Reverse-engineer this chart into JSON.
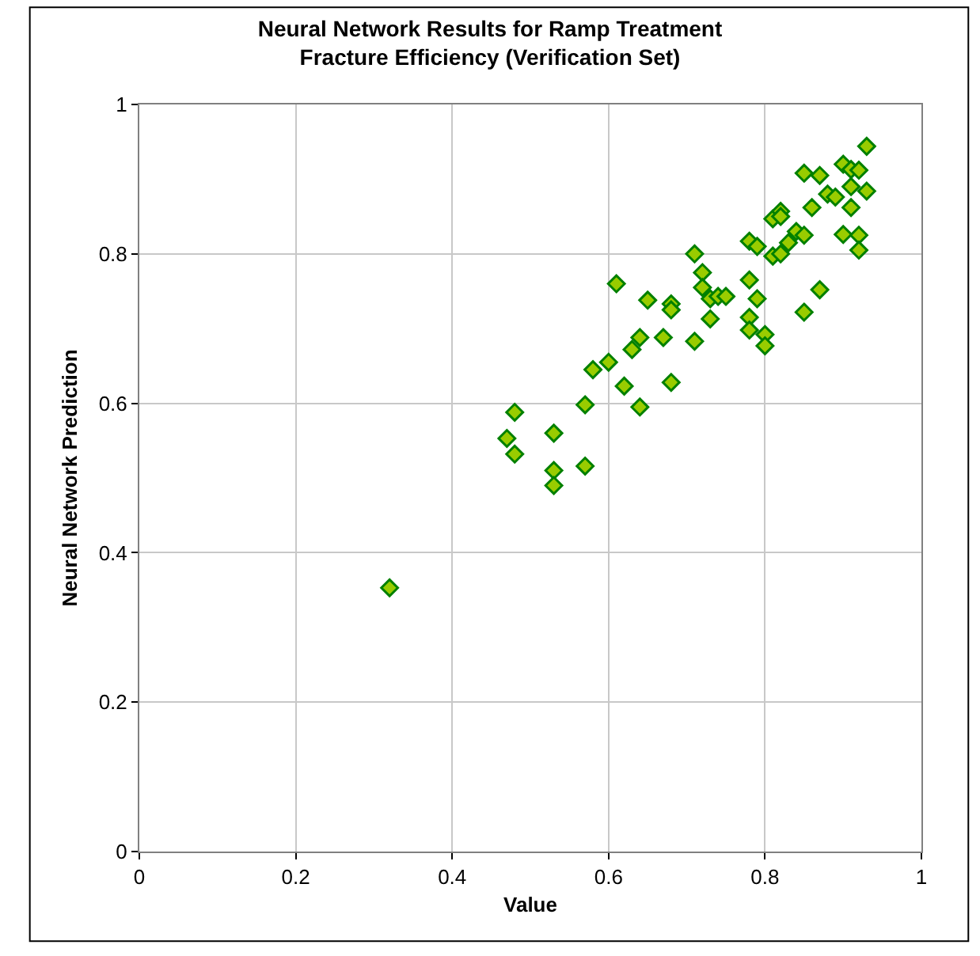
{
  "chart_data": {
    "type": "scatter",
    "title": "Neural Network Results for Ramp Treatment\nFracture Efficiency (Verification Set)",
    "xlabel": "Value",
    "ylabel": "Neural Network Prediction",
    "x": [
      0.32,
      0.47,
      0.48,
      0.48,
      0.53,
      0.53,
      0.53,
      0.57,
      0.57,
      0.58,
      0.6,
      0.61,
      0.62,
      0.63,
      0.64,
      0.64,
      0.65,
      0.67,
      0.68,
      0.68,
      0.68,
      0.71,
      0.71,
      0.72,
      0.72,
      0.73,
      0.73,
      0.74,
      0.75,
      0.78,
      0.78,
      0.78,
      0.78,
      0.79,
      0.79,
      0.8,
      0.8,
      0.81,
      0.81,
      0.82,
      0.82,
      0.82,
      0.83,
      0.84,
      0.85,
      0.85,
      0.85,
      0.86,
      0.87,
      0.87,
      0.88,
      0.89,
      0.9,
      0.9,
      0.91,
      0.91,
      0.91,
      0.92,
      0.92,
      0.92,
      0.93,
      0.93
    ],
    "values": [
      0.353,
      0.553,
      0.588,
      0.532,
      0.56,
      0.51,
      0.49,
      0.598,
      0.516,
      0.645,
      0.655,
      0.76,
      0.623,
      0.672,
      0.688,
      0.595,
      0.738,
      0.688,
      0.733,
      0.725,
      0.628,
      0.8,
      0.683,
      0.775,
      0.755,
      0.713,
      0.74,
      0.743,
      0.743,
      0.817,
      0.765,
      0.715,
      0.698,
      0.81,
      0.74,
      0.692,
      0.677,
      0.847,
      0.797,
      0.857,
      0.85,
      0.8,
      0.815,
      0.83,
      0.825,
      0.908,
      0.722,
      0.862,
      0.905,
      0.752,
      0.88,
      0.876,
      0.92,
      0.826,
      0.913,
      0.89,
      0.862,
      0.912,
      0.825,
      0.805,
      0.944,
      0.884
    ],
    "color": "#99cc00",
    "marker": "diamond",
    "xlim": [
      0,
      1
    ],
    "ylim": [
      0,
      1
    ],
    "xticks": [
      0,
      0.2,
      0.4,
      0.6,
      0.8,
      1
    ],
    "yticks": [
      0,
      0.2,
      0.4,
      0.6,
      0.8,
      1
    ],
    "grid": true
  }
}
